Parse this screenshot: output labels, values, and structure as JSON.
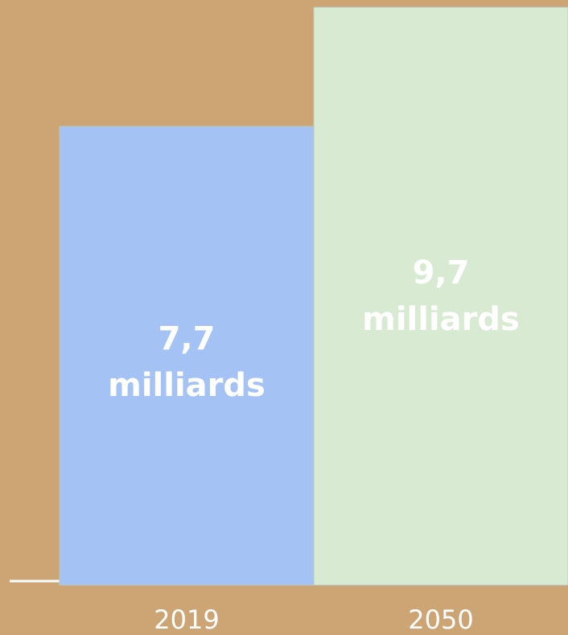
{
  "chart_data": {
    "type": "bar",
    "categories": [
      "2019",
      "2050"
    ],
    "values": [
      7.7,
      9.7
    ],
    "value_labels": [
      "7,7 milliards",
      "9,7 milliards"
    ],
    "colors": [
      "#a4c2f4",
      "#d9ead3"
    ]
  }
}
